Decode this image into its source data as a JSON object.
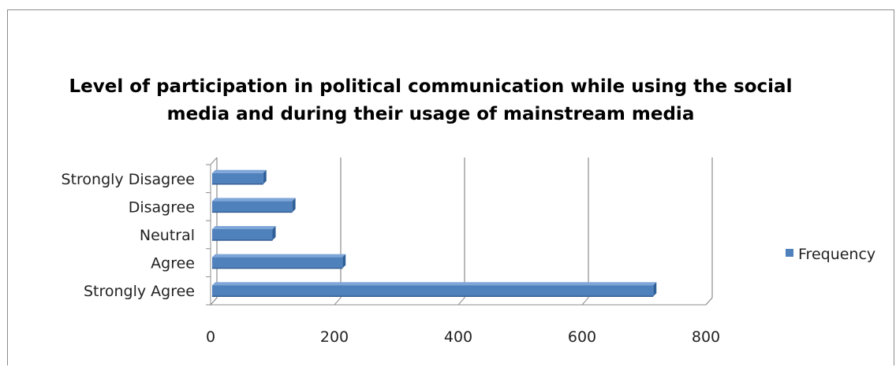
{
  "chart_data": {
    "type": "bar",
    "orientation": "horizontal",
    "title": "Level of participation in political communication while using the social media and during their usage of mainstream media",
    "title_lines": [
      "Level of participation in political communication while using the social",
      "media and during their usage of mainstream media"
    ],
    "categories": [
      "Strongly Disagree",
      "Disagree",
      "Neutral",
      "Agree",
      "Strongly Agree"
    ],
    "series": [
      {
        "name": "Frequency",
        "values": [
          85,
          132,
          100,
          213,
          715
        ],
        "color": "#4f81bd"
      }
    ],
    "xlim": [
      0,
      800
    ],
    "x_ticks": [
      "0",
      "200",
      "400",
      "600",
      "800"
    ],
    "grid": "vertical",
    "legend_position": "right",
    "style": "3d"
  }
}
